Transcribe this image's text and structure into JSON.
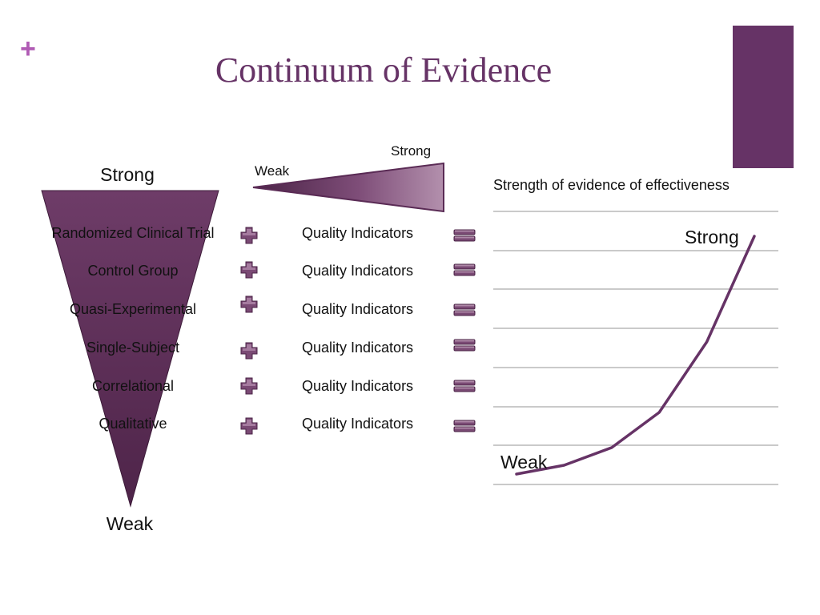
{
  "slide": {
    "title": "Continuum of Evidence",
    "corner_mark": "+"
  },
  "funnel": {
    "top_label": "Strong",
    "bottom_label": "Weak",
    "items": [
      "Randomized Clinical Trial",
      "Control Group",
      "Quasi-Experimental",
      "Single-Subject",
      "Correlational",
      "Qualitative"
    ]
  },
  "wedge": {
    "left_label": "Weak",
    "right_label": "Strong"
  },
  "indicators": {
    "label": "Quality Indicators",
    "plus_icon": "plus-icon",
    "minus_icon": "minus-icon"
  },
  "chart_data": {
    "type": "line",
    "title": "Strength of evidence of effectiveness",
    "annotations": [
      "Strong",
      "Weak"
    ],
    "grid": true,
    "series": [
      {
        "values": [
          0.5,
          1.0,
          2.0,
          4.0,
          8.0,
          14.0
        ]
      }
    ],
    "ylim": [
      0,
      14.5
    ]
  },
  "colors": {
    "accent": "#663366",
    "funnel": "#663366",
    "plus_mark": "#b05bb4",
    "gridline": "#aaaaaa"
  }
}
